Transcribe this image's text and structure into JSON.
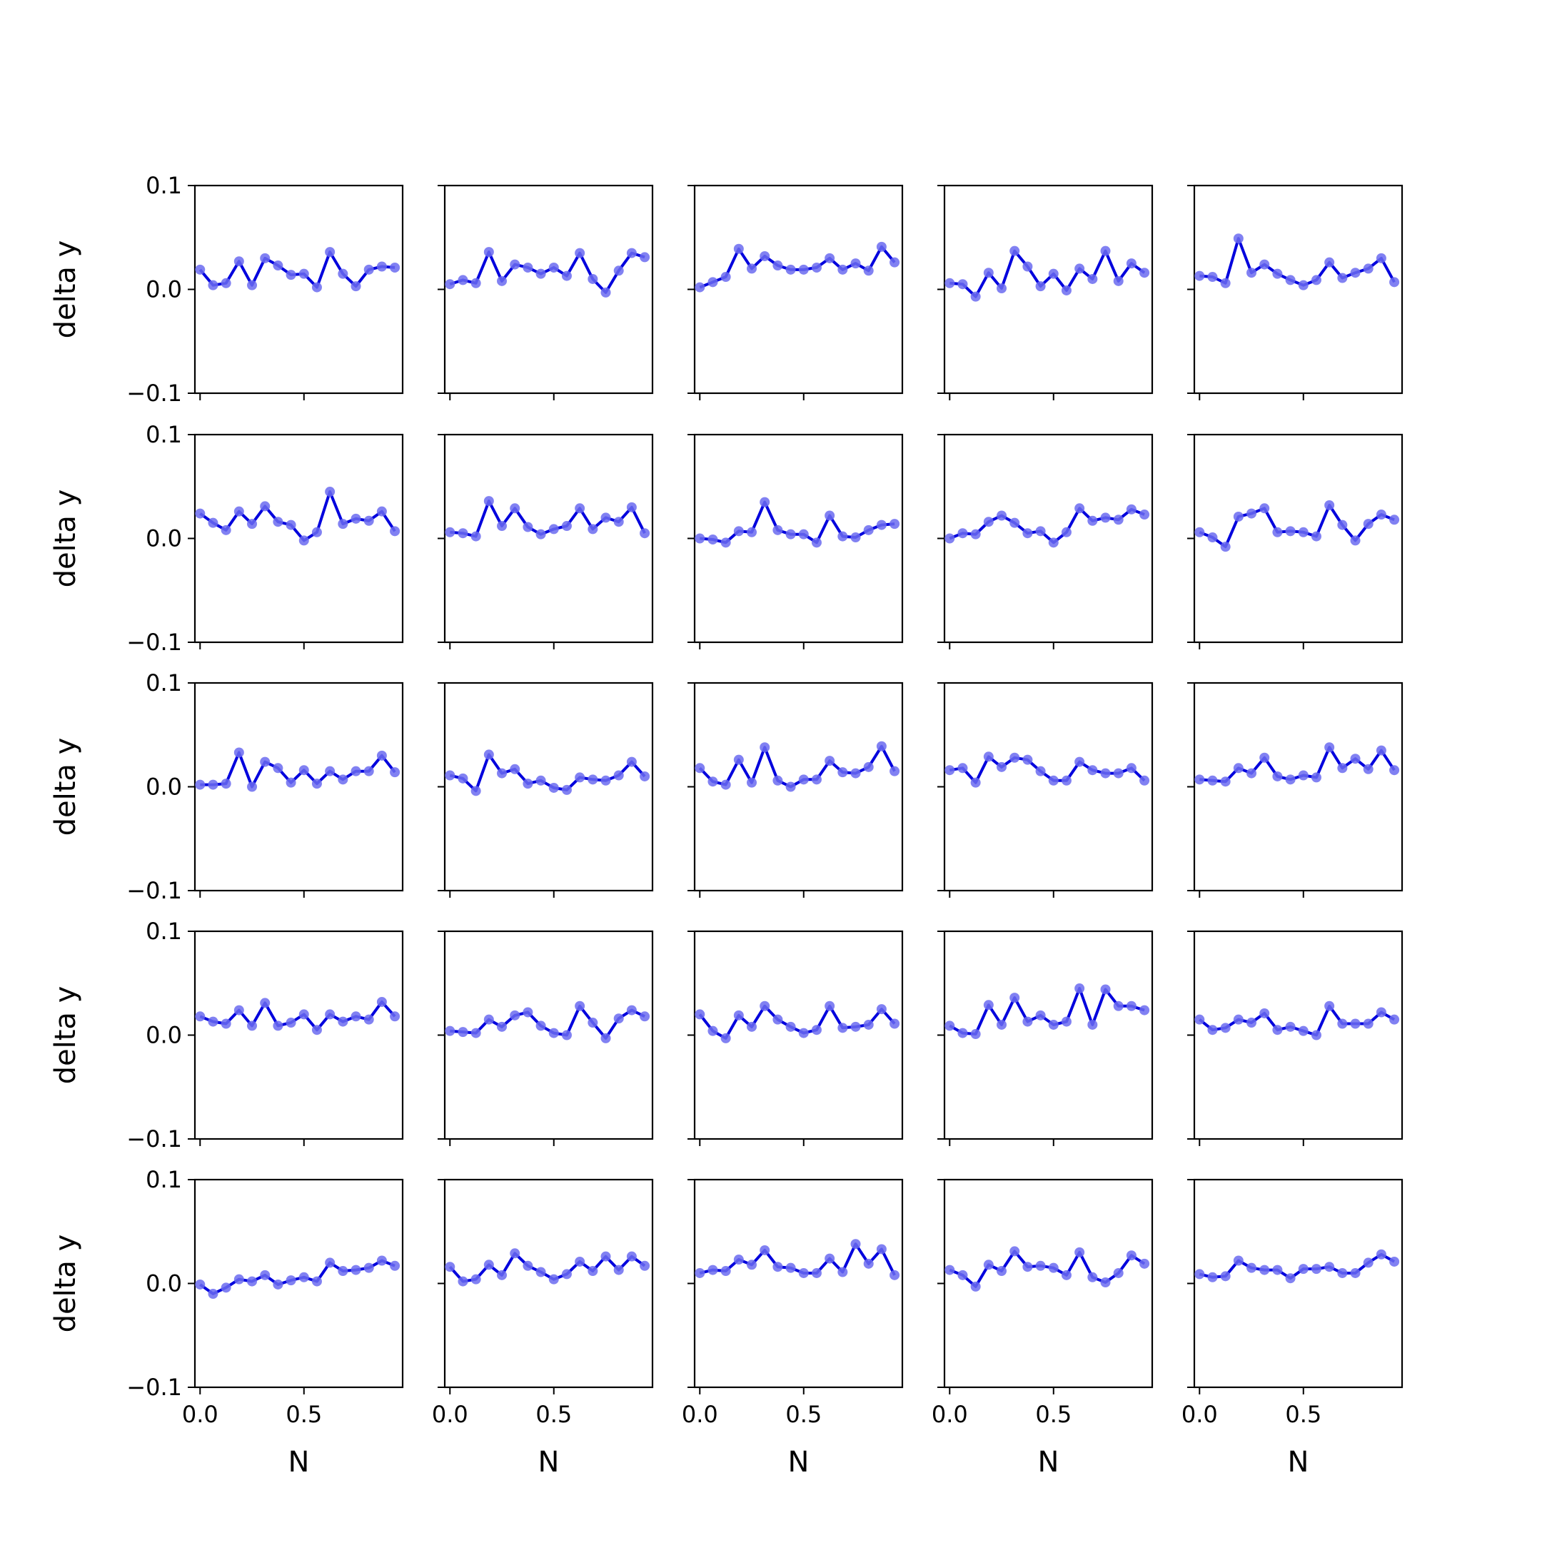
{
  "chart_data": {
    "type": "line",
    "layout": {
      "rows": 5,
      "cols": 5,
      "shared_x": true,
      "shared_y": true
    },
    "xlabel": "N",
    "ylabel": "delta y",
    "xlim": [
      -0.025,
      0.975
    ],
    "ylim": [
      -0.1,
      0.1
    ],
    "xticks": [
      0.0,
      0.5
    ],
    "xtick_labels": [
      "0.0",
      "0.5"
    ],
    "yticks": [
      -0.1,
      0.0,
      0.1
    ],
    "ytick_labels": [
      "−0.1",
      "0.0",
      "0.1"
    ],
    "grid": false,
    "legend": "none",
    "x": [
      0.0,
      0.0625,
      0.125,
      0.1875,
      0.25,
      0.3125,
      0.375,
      0.4375,
      0.5,
      0.5625,
      0.625,
      0.6875,
      0.75,
      0.8125,
      0.875,
      0.9375
    ],
    "line_color": "#0000dd",
    "marker_color": "#6b6bf0",
    "panels": [
      {
        "values": [
          0.019,
          0.004,
          0.006,
          0.027,
          0.004,
          0.03,
          0.023,
          0.014,
          0.015,
          0.002,
          0.036,
          0.015,
          0.003,
          0.019,
          0.022,
          0.021
        ]
      },
      {
        "values": [
          0.005,
          0.009,
          0.006,
          0.036,
          0.008,
          0.024,
          0.021,
          0.015,
          0.021,
          0.013,
          0.035,
          0.01,
          -0.003,
          0.018,
          0.035,
          0.031
        ]
      },
      {
        "values": [
          0.002,
          0.007,
          0.012,
          0.039,
          0.02,
          0.032,
          0.023,
          0.019,
          0.019,
          0.021,
          0.03,
          0.019,
          0.025,
          0.018,
          0.041,
          0.026
        ]
      },
      {
        "values": [
          0.006,
          0.005,
          -0.007,
          0.016,
          0.001,
          0.037,
          0.022,
          0.003,
          0.015,
          -0.001,
          0.02,
          0.01,
          0.037,
          0.008,
          0.025,
          0.016
        ]
      },
      {
        "values": [
          0.013,
          0.012,
          0.006,
          0.049,
          0.016,
          0.024,
          0.015,
          0.009,
          0.004,
          0.009,
          0.026,
          0.011,
          0.016,
          0.02,
          0.03,
          0.007
        ]
      },
      {
        "values": [
          0.024,
          0.015,
          0.008,
          0.026,
          0.014,
          0.031,
          0.016,
          0.013,
          -0.002,
          0.006,
          0.045,
          0.014,
          0.019,
          0.017,
          0.026,
          0.007
        ]
      },
      {
        "values": [
          0.006,
          0.005,
          0.002,
          0.036,
          0.012,
          0.029,
          0.011,
          0.004,
          0.009,
          0.012,
          0.029,
          0.009,
          0.02,
          0.016,
          0.03,
          0.005
        ]
      },
      {
        "values": [
          0.0,
          -0.001,
          -0.004,
          0.007,
          0.006,
          0.035,
          0.008,
          0.004,
          0.004,
          -0.004,
          0.022,
          0.002,
          0.001,
          0.008,
          0.013,
          0.014
        ]
      },
      {
        "values": [
          0.0,
          0.005,
          0.004,
          0.016,
          0.022,
          0.015,
          0.005,
          0.007,
          -0.004,
          0.006,
          0.029,
          0.017,
          0.02,
          0.018,
          0.028,
          0.023
        ]
      },
      {
        "values": [
          0.006,
          0.001,
          -0.008,
          0.021,
          0.024,
          0.029,
          0.006,
          0.007,
          0.006,
          0.002,
          0.032,
          0.013,
          -0.002,
          0.014,
          0.023,
          0.018
        ]
      },
      {
        "values": [
          0.002,
          0.002,
          0.003,
          0.033,
          0.0,
          0.024,
          0.018,
          0.004,
          0.016,
          0.003,
          0.015,
          0.007,
          0.015,
          0.015,
          0.03,
          0.014
        ]
      },
      {
        "values": [
          0.011,
          0.008,
          -0.004,
          0.031,
          0.013,
          0.017,
          0.003,
          0.006,
          -0.001,
          -0.003,
          0.009,
          0.007,
          0.006,
          0.011,
          0.024,
          0.01
        ]
      },
      {
        "values": [
          0.018,
          0.005,
          0.002,
          0.026,
          0.004,
          0.038,
          0.006,
          0.0,
          0.007,
          0.007,
          0.025,
          0.014,
          0.013,
          0.019,
          0.039,
          0.015
        ]
      },
      {
        "values": [
          0.016,
          0.018,
          0.004,
          0.029,
          0.019,
          0.028,
          0.026,
          0.015,
          0.006,
          0.006,
          0.024,
          0.016,
          0.013,
          0.013,
          0.018,
          0.006
        ]
      },
      {
        "values": [
          0.007,
          0.006,
          0.005,
          0.018,
          0.013,
          0.028,
          0.01,
          0.007,
          0.011,
          0.009,
          0.038,
          0.018,
          0.027,
          0.017,
          0.035,
          0.016
        ]
      },
      {
        "values": [
          0.018,
          0.013,
          0.011,
          0.024,
          0.009,
          0.031,
          0.009,
          0.012,
          0.02,
          0.005,
          0.02,
          0.013,
          0.018,
          0.015,
          0.032,
          0.018
        ]
      },
      {
        "values": [
          0.004,
          0.003,
          0.002,
          0.015,
          0.008,
          0.019,
          0.022,
          0.009,
          0.002,
          0.0,
          0.028,
          0.012,
          -0.003,
          0.016,
          0.024,
          0.018
        ]
      },
      {
        "values": [
          0.02,
          0.004,
          -0.003,
          0.019,
          0.008,
          0.028,
          0.015,
          0.008,
          0.002,
          0.005,
          0.028,
          0.007,
          0.008,
          0.01,
          0.025,
          0.011
        ]
      },
      {
        "values": [
          0.009,
          0.002,
          0.001,
          0.029,
          0.01,
          0.036,
          0.013,
          0.019,
          0.01,
          0.013,
          0.045,
          0.01,
          0.044,
          0.028,
          0.028,
          0.024
        ]
      },
      {
        "values": [
          0.015,
          0.005,
          0.007,
          0.015,
          0.012,
          0.021,
          0.005,
          0.008,
          0.004,
          0.0,
          0.028,
          0.011,
          0.011,
          0.011,
          0.022,
          0.015
        ]
      },
      {
        "values": [
          -0.001,
          -0.01,
          -0.004,
          0.004,
          0.002,
          0.008,
          -0.001,
          0.003,
          0.006,
          0.002,
          0.02,
          0.012,
          0.013,
          0.015,
          0.022,
          0.017
        ]
      },
      {
        "values": [
          0.016,
          0.002,
          0.004,
          0.018,
          0.008,
          0.029,
          0.017,
          0.011,
          0.004,
          0.009,
          0.021,
          0.012,
          0.026,
          0.013,
          0.026,
          0.017
        ]
      },
      {
        "values": [
          0.01,
          0.013,
          0.012,
          0.023,
          0.018,
          0.032,
          0.016,
          0.015,
          0.01,
          0.01,
          0.024,
          0.011,
          0.038,
          0.019,
          0.033,
          0.008
        ]
      },
      {
        "values": [
          0.013,
          0.008,
          -0.003,
          0.018,
          0.012,
          0.031,
          0.016,
          0.017,
          0.015,
          0.008,
          0.03,
          0.006,
          0.001,
          0.01,
          0.027,
          0.019
        ]
      },
      {
        "values": [
          0.009,
          0.006,
          0.007,
          0.022,
          0.015,
          0.013,
          0.013,
          0.005,
          0.014,
          0.014,
          0.016,
          0.01,
          0.01,
          0.02,
          0.028,
          0.021
        ]
      }
    ]
  }
}
